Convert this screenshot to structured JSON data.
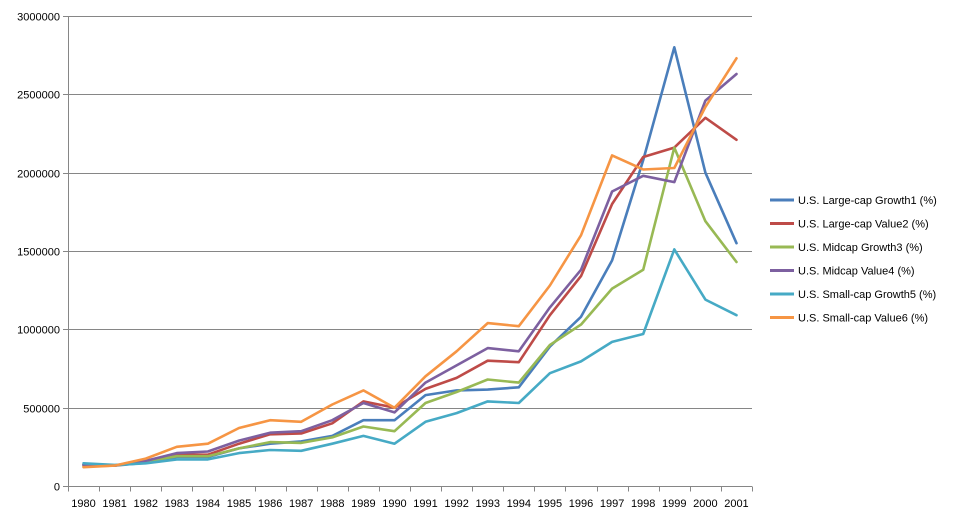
{
  "chart_data": {
    "type": "line",
    "title": "",
    "xlabel": "",
    "ylabel": "",
    "x": [
      "1980",
      "1981",
      "1982",
      "1983",
      "1984",
      "1985",
      "1986",
      "1987",
      "1988",
      "1989",
      "1990",
      "1991",
      "1992",
      "1993",
      "1994",
      "1995",
      "1996",
      "1997",
      "1998",
      "1999",
      "2000",
      "2001"
    ],
    "ylim": [
      0,
      3000000
    ],
    "yticks": [
      0,
      500000,
      1000000,
      1500000,
      2000000,
      2500000,
      3000000
    ],
    "ytick_labels": [
      "0",
      "500000",
      "1000000",
      "1500000",
      "2000000",
      "2500000",
      "3000000"
    ],
    "grid": true,
    "legend": "right",
    "series": [
      {
        "name": "U.S. Large-cap Growth1 (%)",
        "color": "#4A7EBB",
        "values": [
          135000,
          130000,
          148000,
          185000,
          185000,
          240000,
          270000,
          285000,
          320000,
          420000,
          420000,
          580000,
          610000,
          615000,
          630000,
          890000,
          1080000,
          1440000,
          2080000,
          2800000,
          2000000,
          1550000
        ]
      },
      {
        "name": "U.S. Large-cap Value2 (%)",
        "color": "#BE4B48",
        "values": [
          135000,
          130000,
          160000,
          200000,
          200000,
          270000,
          330000,
          335000,
          400000,
          540000,
          500000,
          620000,
          690000,
          800000,
          790000,
          1090000,
          1340000,
          1800000,
          2100000,
          2160000,
          2350000,
          2210000
        ]
      },
      {
        "name": "U.S. Midcap Growth3 (%)",
        "color": "#98B954",
        "values": [
          125000,
          130000,
          155000,
          190000,
          190000,
          240000,
          280000,
          275000,
          310000,
          380000,
          350000,
          530000,
          600000,
          680000,
          660000,
          900000,
          1030000,
          1260000,
          1380000,
          2160000,
          1690000,
          1430000
        ]
      },
      {
        "name": "U.S. Midcap Value4 (%)",
        "color": "#7D60A0",
        "values": [
          135000,
          130000,
          160000,
          210000,
          220000,
          290000,
          340000,
          350000,
          420000,
          530000,
          470000,
          660000,
          770000,
          880000,
          860000,
          1140000,
          1380000,
          1880000,
          1980000,
          1940000,
          2460000,
          2630000
        ]
      },
      {
        "name": "U.S. Small-cap Growth5 (%)",
        "color": "#46AAC5",
        "values": [
          145000,
          135000,
          145000,
          170000,
          170000,
          210000,
          230000,
          225000,
          270000,
          320000,
          270000,
          410000,
          465000,
          540000,
          530000,
          720000,
          795000,
          920000,
          970000,
          1510000,
          1190000,
          1090000
        ]
      },
      {
        "name": "U.S. Small-cap Value6 (%)",
        "color": "#F69544",
        "values": [
          120000,
          130000,
          175000,
          250000,
          270000,
          370000,
          420000,
          410000,
          520000,
          610000,
          500000,
          700000,
          860000,
          1040000,
          1020000,
          1280000,
          1600000,
          2110000,
          2020000,
          2030000,
          2420000,
          2730000
        ]
      }
    ]
  }
}
